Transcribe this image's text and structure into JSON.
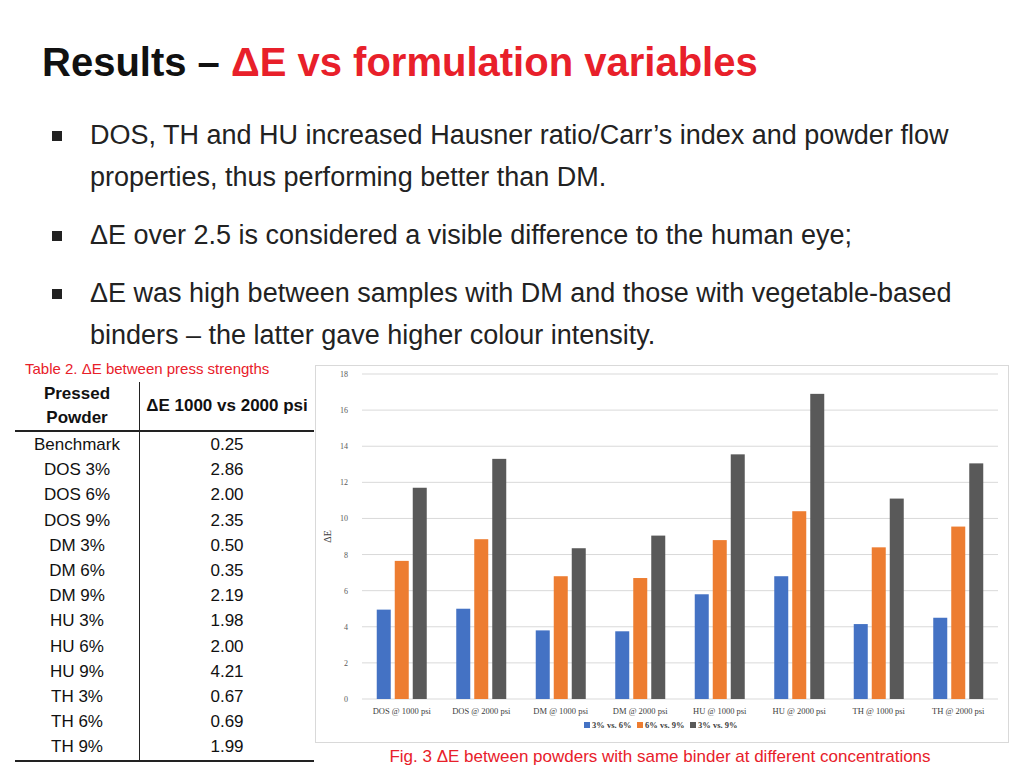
{
  "slide": {
    "title_prefix": "Results – ",
    "title_highlight": "ΔE vs formulation variables",
    "bullets": [
      "DOS, TH and HU increased Hausner ratio/Carr’s index and powder flow properties, thus performing better than DM.",
      "ΔE over 2.5 is considered a visible difference to the human eye;",
      "ΔE was high between samples with DM and those with vegetable-based binders – the latter gave higher colour intensity."
    ]
  },
  "table": {
    "caption": "Table 2. ΔE between press strengths",
    "header": [
      "Pressed Powder",
      "ΔE 1000 vs 2000 psi"
    ],
    "rows": [
      [
        "Benchmark",
        "0.25"
      ],
      [
        "DOS 3%",
        "2.86"
      ],
      [
        "DOS 6%",
        "2.00"
      ],
      [
        "DOS 9%",
        "2.35"
      ],
      [
        "DM 3%",
        "0.50"
      ],
      [
        "DM 6%",
        "0.35"
      ],
      [
        "DM 9%",
        "2.19"
      ],
      [
        "HU 3%",
        "1.98"
      ],
      [
        "HU 6%",
        "2.00"
      ],
      [
        "HU 9%",
        "4.21"
      ],
      [
        "TH 3%",
        "0.67"
      ],
      [
        "TH 6%",
        "0.69"
      ],
      [
        "TH 9%",
        "1.99"
      ]
    ]
  },
  "chart_data": {
    "type": "bar",
    "title": "Fig. 3 ΔE between powders with same binder at different concentrations",
    "y_label": "ΔE",
    "categories": [
      "DOS @ 1000 psi",
      "DOS @ 2000 psi",
      "DM @ 1000 psi",
      "DM @ 2000 psi",
      "HU @ 1000 psi",
      "HU @ 2000 psi",
      "TH @ 1000 psi",
      "TH @ 2000 psi"
    ],
    "series": [
      {
        "name": "3% vs. 6%",
        "color": "#4472c4",
        "values": [
          4.95,
          5.0,
          3.8,
          3.75,
          5.8,
          6.8,
          4.15,
          4.5
        ]
      },
      {
        "name": "6% vs. 9%",
        "color": "#ed7d31",
        "values": [
          7.65,
          8.85,
          6.8,
          6.7,
          8.8,
          10.4,
          8.4,
          9.55
        ]
      },
      {
        "name": "3% vs. 9%",
        "color": "#595959",
        "values": [
          11.7,
          13.3,
          8.35,
          9.05,
          13.55,
          16.9,
          11.1,
          13.05
        ]
      }
    ],
    "ylim": [
      0,
      18
    ],
    "yticks": [
      0,
      2,
      4,
      6,
      8,
      10,
      12,
      14,
      16,
      18
    ],
    "grid": true,
    "legend": "bottom"
  }
}
